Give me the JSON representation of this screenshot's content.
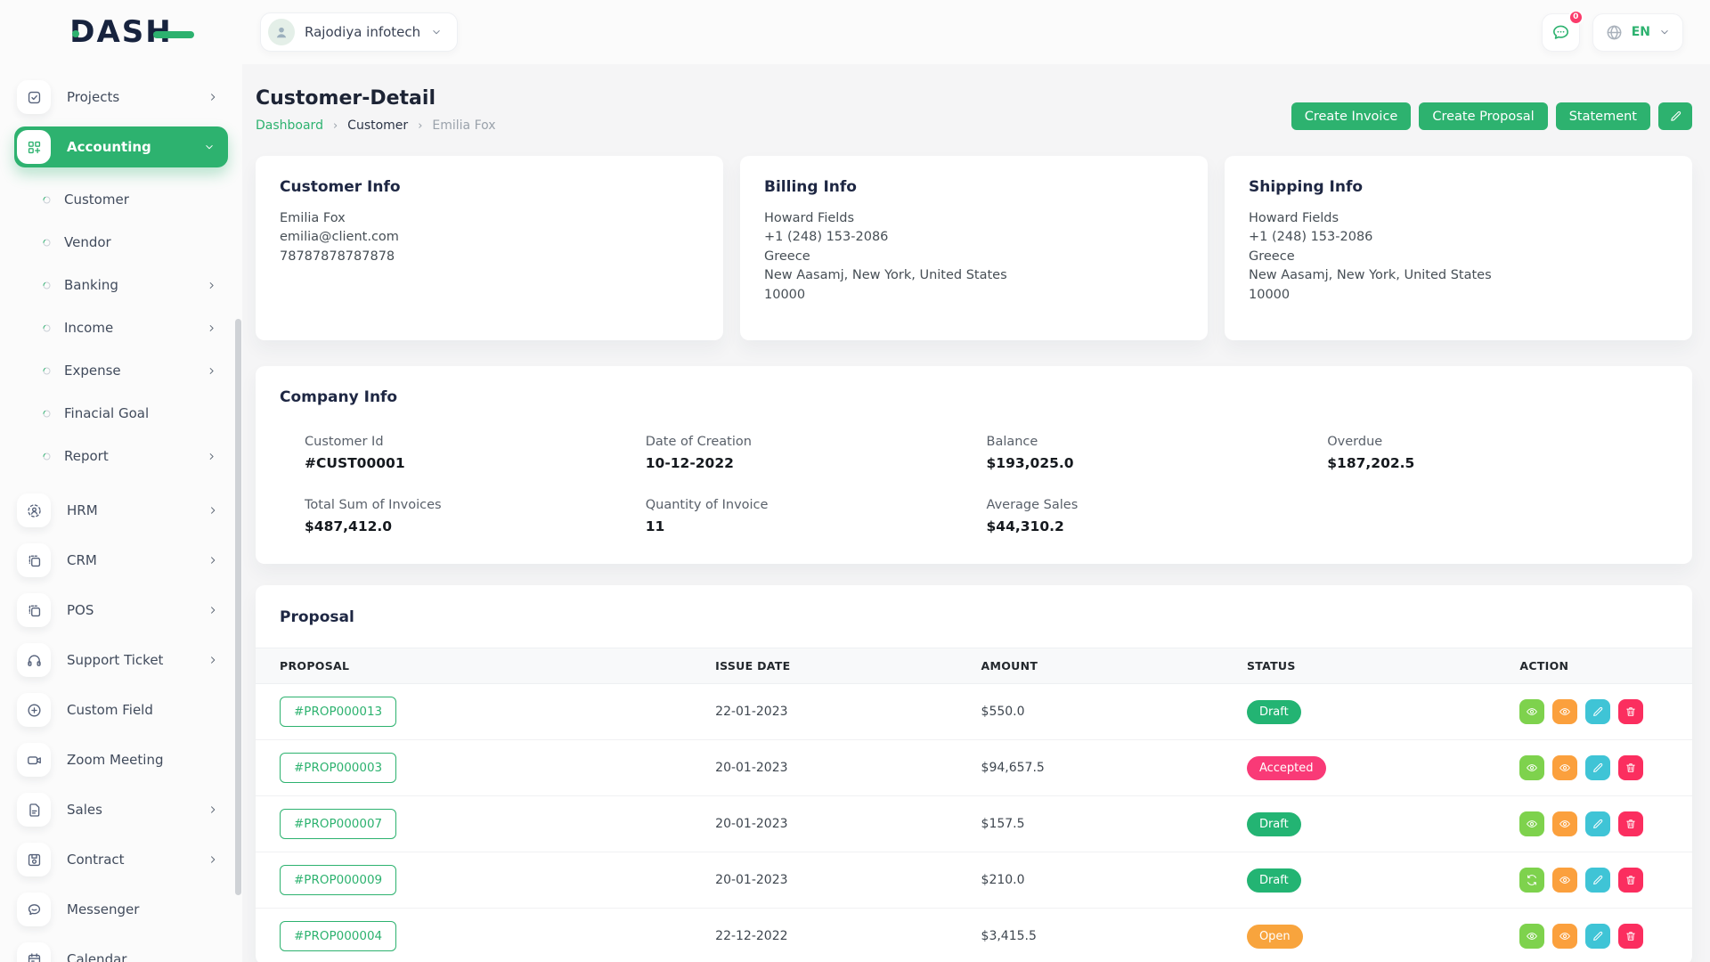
{
  "brand": {
    "name": "DASH"
  },
  "topbar": {
    "company": "Rajodiya infotech",
    "notification_badge": "0",
    "language": "EN"
  },
  "sidebar": {
    "items": [
      {
        "id": "projects",
        "label": "Projects",
        "icon": "checkbox",
        "chevron": "right"
      },
      {
        "id": "accounting",
        "label": "Accounting",
        "icon": "grid-plus",
        "chevron": "down",
        "active": true,
        "children": [
          {
            "id": "customer",
            "label": "Customer"
          },
          {
            "id": "vendor",
            "label": "Vendor"
          },
          {
            "id": "banking",
            "label": "Banking",
            "chevron": "right"
          },
          {
            "id": "income",
            "label": "Income",
            "chevron": "right"
          },
          {
            "id": "expense",
            "label": "Expense",
            "chevron": "right"
          },
          {
            "id": "finacial-goal",
            "label": "Finacial Goal"
          },
          {
            "id": "report",
            "label": "Report",
            "chevron": "right"
          }
        ]
      },
      {
        "id": "hrm",
        "label": "HRM",
        "icon": "user-focus",
        "chevron": "right"
      },
      {
        "id": "crm",
        "label": "CRM",
        "icon": "overlap-squares",
        "chevron": "right"
      },
      {
        "id": "pos",
        "label": "POS",
        "icon": "overlap-squares",
        "chevron": "right"
      },
      {
        "id": "support-ticket",
        "label": "Support Ticket",
        "icon": "headphones",
        "chevron": "right"
      },
      {
        "id": "custom-field",
        "label": "Custom Field",
        "icon": "circle-plus"
      },
      {
        "id": "zoom-meeting",
        "label": "Zoom Meeting",
        "icon": "video-camera"
      },
      {
        "id": "sales",
        "label": "Sales",
        "icon": "document",
        "chevron": "right"
      },
      {
        "id": "contract",
        "label": "Contract",
        "icon": "floppy",
        "chevron": "right"
      },
      {
        "id": "messenger",
        "label": "Messenger",
        "icon": "chat-bubble"
      },
      {
        "id": "calendar",
        "label": "Calendar",
        "icon": "calendar"
      }
    ]
  },
  "page": {
    "title": "Customer-Detail",
    "breadcrumb": [
      "Dashboard",
      "Customer",
      "Emilia Fox"
    ],
    "actions": [
      "Create Invoice",
      "Create Proposal",
      "Statement"
    ]
  },
  "info_cards": [
    {
      "id": "customer-info",
      "title": "Customer Info",
      "lines": [
        "Emilia Fox",
        "emilia@client.com",
        "78787878787878"
      ]
    },
    {
      "id": "billing-info",
      "title": "Billing Info",
      "lines": [
        "Howard Fields",
        "+1 (248) 153-2086",
        "Greece",
        "New Aasamj, New York, United States",
        "10000"
      ]
    },
    {
      "id": "shipping-info",
      "title": "Shipping Info",
      "lines": [
        "Howard Fields",
        "+1 (248) 153-2086",
        "Greece",
        "New Aasamj, New York, United States",
        "10000"
      ]
    }
  ],
  "company_info": {
    "title": "Company Info",
    "stats": [
      {
        "id": "customer-id",
        "label": "Customer Id",
        "value": "#CUST00001"
      },
      {
        "id": "date-of-creation",
        "label": "Date of Creation",
        "value": "10-12-2022"
      },
      {
        "id": "balance",
        "label": "Balance",
        "value": "$193,025.0"
      },
      {
        "id": "overdue",
        "label": "Overdue",
        "value": "$187,202.5"
      },
      {
        "id": "total-sum-of-invoices",
        "label": "Total Sum of Invoices",
        "value": "$487,412.0"
      },
      {
        "id": "quantity-of-invoice",
        "label": "Quantity of Invoice",
        "value": "11"
      },
      {
        "id": "average-sales",
        "label": "Average Sales",
        "value": "$44,310.2"
      }
    ]
  },
  "proposal": {
    "title": "Proposal",
    "columns": [
      "PROPOSAL",
      "ISSUE DATE",
      "AMOUNT",
      "STATUS",
      "ACTION"
    ],
    "rows": [
      {
        "id": "#PROP000013",
        "date": "22-01-2023",
        "amount": "$550.0",
        "status": "Draft",
        "status_key": "draft",
        "actions": [
          "eye",
          "eye",
          "pencil",
          "trash"
        ]
      },
      {
        "id": "#PROP000003",
        "date": "20-01-2023",
        "amount": "$94,657.5",
        "status": "Accepted",
        "status_key": "accepted",
        "actions": [
          "eye",
          "eye",
          "pencil",
          "trash"
        ]
      },
      {
        "id": "#PROP000007",
        "date": "20-01-2023",
        "amount": "$157.5",
        "status": "Draft",
        "status_key": "draft",
        "actions": [
          "eye",
          "eye",
          "pencil",
          "trash"
        ]
      },
      {
        "id": "#PROP000009",
        "date": "20-01-2023",
        "amount": "$210.0",
        "status": "Draft",
        "status_key": "draft",
        "actions": [
          "refresh",
          "eye",
          "pencil",
          "trash"
        ]
      },
      {
        "id": "#PROP000004",
        "date": "22-12-2022",
        "amount": "$3,415.5",
        "status": "Open",
        "status_key": "open",
        "actions": [
          "eye",
          "eye",
          "pencil",
          "trash"
        ]
      }
    ]
  },
  "colors": {
    "primary_green": "#2db26f",
    "logo_navy": "#17233e",
    "badge_draft": "#23b473",
    "badge_accepted": "#f93a77",
    "badge_open": "#f8a43d",
    "action_view": "#7ed24d",
    "action_preview": "#fba03d",
    "action_edit": "#3fc4d6",
    "action_delete": "#fb2e5f",
    "notification_badge": "#fb3b6b"
  }
}
